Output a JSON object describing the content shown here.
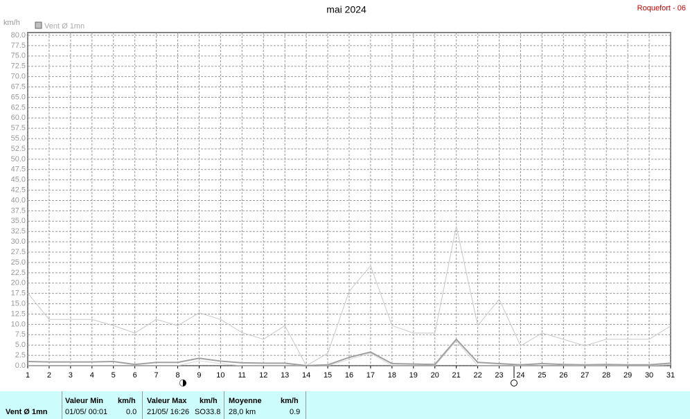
{
  "chart_data": {
    "type": "line",
    "title": "mai 2024",
    "station": "Roquefort - 06",
    "y_label": "km/h",
    "legend": "Vent Ø 1mn",
    "x": [
      1,
      2,
      3,
      4,
      5,
      6,
      7,
      8,
      9,
      10,
      11,
      12,
      13,
      14,
      15,
      16,
      17,
      18,
      19,
      20,
      21,
      22,
      23,
      24,
      25,
      26,
      27,
      28,
      29,
      30,
      31
    ],
    "xlim": [
      1,
      31
    ],
    "xticks": [
      1,
      2,
      3,
      4,
      5,
      6,
      7,
      8,
      9,
      10,
      11,
      12,
      13,
      14,
      15,
      16,
      17,
      18,
      19,
      20,
      21,
      22,
      23,
      24,
      25,
      26,
      27,
      28,
      29,
      30,
      31
    ],
    "ylim": [
      0,
      80
    ],
    "yticks": [
      {
        "value": 0,
        "label": "0.0"
      },
      2.5,
      {
        "value": 5,
        "label": "5.0"
      },
      7.5,
      {
        "value": 10,
        "label": "10.0"
      },
      12.5,
      {
        "value": 15,
        "label": "15.0"
      },
      17.5,
      {
        "value": 20,
        "label": "20.0"
      },
      22.5,
      {
        "value": 25,
        "label": "25.0"
      },
      27.5,
      {
        "value": 30,
        "label": "30.0"
      },
      32.5,
      {
        "value": 35,
        "label": "35.0"
      },
      37.5,
      {
        "value": 40,
        "label": "40.0"
      },
      42.5,
      {
        "value": 45,
        "label": "45.0"
      },
      47.5,
      {
        "value": 50,
        "label": "50.0"
      },
      52.5,
      {
        "value": 55,
        "label": "55.0"
      },
      57.5,
      {
        "value": 60,
        "label": "60.0"
      },
      62.5,
      {
        "value": 65,
        "label": "65.0"
      },
      67.5,
      {
        "value": 70,
        "label": "70.0"
      },
      72.5,
      {
        "value": 75,
        "label": "75.0"
      },
      77.5,
      {
        "value": 80,
        "label": "80.0"
      }
    ],
    "grid": true,
    "series": [
      {
        "name": "Vent Ø 1mn",
        "color": "#a0a0a0",
        "width": 2,
        "values": [
          1.0,
          0.9,
          0.9,
          0.9,
          1.0,
          0.3,
          0.8,
          0.8,
          1.8,
          1.1,
          0.7,
          0.6,
          0.6,
          0,
          0.2,
          2.0,
          3.3,
          0.5,
          0.4,
          0.3,
          6.4,
          0.8,
          0.5,
          0.2,
          0.5,
          0.3,
          0.2,
          0.3,
          0.2,
          0.2,
          0.6
        ]
      },
      {
        "color": "#c8c8c8",
        "width": 1,
        "values": [
          17.6,
          11.2,
          11.2,
          11.2,
          9.7,
          7.9,
          11.2,
          9.7,
          12.8,
          11.2,
          8.0,
          6.4,
          9.7,
          0,
          3.0,
          18.0,
          24.2,
          9.7,
          7.9,
          7.9,
          33.8,
          9.7,
          16.1,
          4.8,
          7.9,
          6.4,
          4.8,
          6.4,
          6.4,
          6.4,
          9.6
        ]
      },
      {
        "color": "#d4d4d4",
        "width": 1,
        "values": [
          0,
          0,
          0,
          0,
          0,
          0,
          0,
          0,
          1.2,
          0.5,
          0,
          0,
          0,
          0,
          0,
          1.5,
          3.0,
          0,
          0,
          0,
          6.0,
          0,
          0,
          0,
          0,
          0,
          0,
          0,
          0,
          0,
          0.3
        ]
      }
    ]
  },
  "stats": {
    "label": "Vent Ø 1mn",
    "min": {
      "title": "Valeur Min",
      "unit": "km/h",
      "date": "01/05/  00:01",
      "value": "0.0"
    },
    "max": {
      "title": "Valeur Max",
      "unit": "km/h",
      "date": "21/05/  16:26",
      "dir": "SO",
      "value": "33.8"
    },
    "mean": {
      "title": "Moyenne",
      "unit": "km/h",
      "distance": "28,0 km",
      "value": "0.9"
    }
  }
}
